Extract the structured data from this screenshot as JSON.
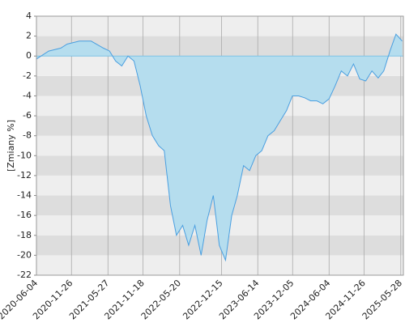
{
  "chart_data": {
    "type": "area",
    "y_label": "[Zmiany %]",
    "x": [
      "2020-06-04",
      "2020-08-04",
      "2020-10-04",
      "2020-11-04",
      "2021-01-04",
      "2021-03-04",
      "2021-05-04",
      "2021-06-04",
      "2021-07-04",
      "2021-08-04",
      "2021-09-04",
      "2021-10-04",
      "2021-11-04",
      "2021-12-04",
      "2022-01-04",
      "2022-02-04",
      "2022-03-04",
      "2022-04-04",
      "2022-05-04",
      "2022-06-04",
      "2022-07-04",
      "2022-08-04",
      "2022-09-04",
      "2022-10-04",
      "2022-11-04",
      "2022-12-04",
      "2023-01-04",
      "2023-02-04",
      "2023-03-04",
      "2023-04-04",
      "2023-05-04",
      "2023-06-04",
      "2023-07-04",
      "2023-08-04",
      "2023-09-04",
      "2023-10-04",
      "2023-11-04",
      "2023-12-04",
      "2024-01-04",
      "2024-02-04",
      "2024-03-04",
      "2024-04-04",
      "2024-05-04",
      "2024-06-04",
      "2024-07-04",
      "2024-08-04",
      "2024-09-04",
      "2024-10-04",
      "2024-11-04",
      "2024-12-04",
      "2025-01-04",
      "2025-02-04",
      "2025-03-04",
      "2025-04-04",
      "2025-05-04",
      "2025-06-04"
    ],
    "values": [
      -0.3,
      0.5,
      0.8,
      1.2,
      1.5,
      1.5,
      0.8,
      0.5,
      -0.5,
      -1.0,
      0.0,
      -0.5,
      -3,
      -6,
      -8,
      -9,
      -9.5,
      -15,
      -18,
      -17,
      -19,
      -17,
      -20,
      -16.5,
      -14,
      -19,
      -20.5,
      -16,
      -14,
      -11,
      -11.5,
      -10,
      -9.5,
      -8,
      -7.5,
      -6.5,
      -5.5,
      -4,
      -4,
      -4.2,
      -4.5,
      -4.5,
      -4.8,
      -4.3,
      -3,
      -1.5,
      -2,
      -0.8,
      -2.3,
      -2.5,
      -1.5,
      -2.2,
      -1.5,
      0.5,
      2.2,
      1.5
    ],
    "color": "#4a9fe0",
    "fill": "#b5ddee",
    "xlim": [
      "2020-06-04",
      "2025-06-10"
    ],
    "xticks": [
      "2020-06-04",
      "2020-11-26",
      "2021-05-27",
      "2021-11-18",
      "2022-05-20",
      "2022-12-15",
      "2023-06-14",
      "2023-12-05",
      "2024-06-04",
      "2024-11-26",
      "2025-05-28"
    ],
    "ylim": [
      -22,
      4
    ],
    "yticks": [
      -22,
      -20,
      -18,
      -16,
      -14,
      -12,
      -10,
      -8,
      -6,
      -4,
      -2,
      0,
      2,
      4
    ],
    "grid": true
  }
}
